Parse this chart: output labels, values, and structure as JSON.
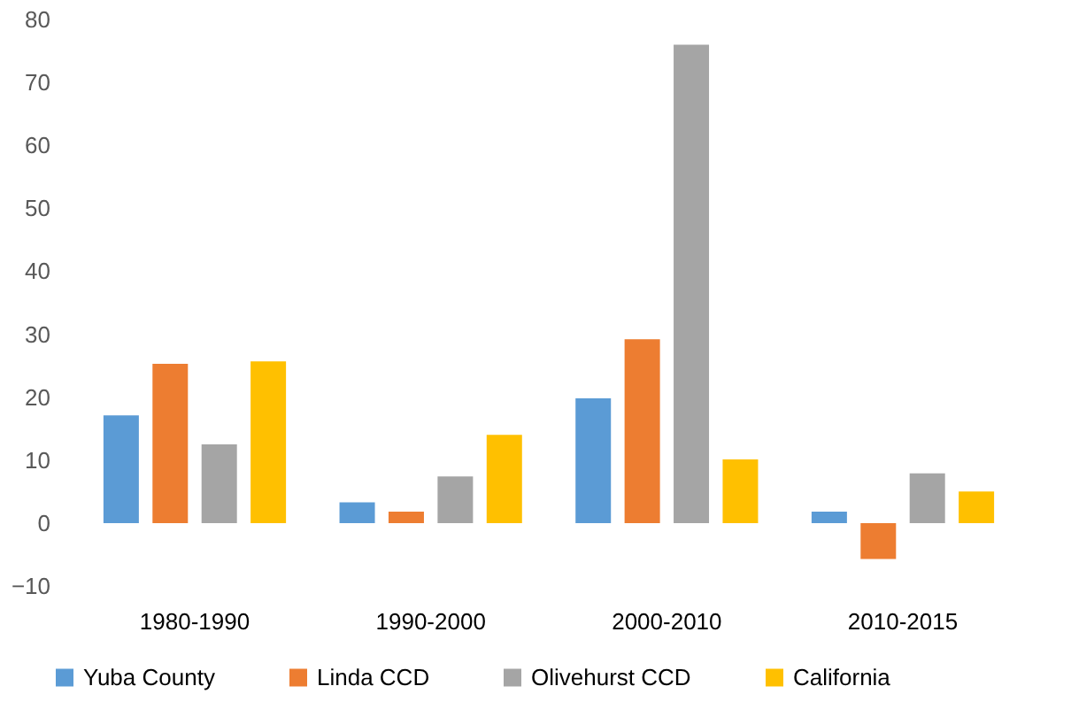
{
  "chart_data": {
    "type": "bar",
    "categories": [
      "1980-1990",
      "1990-2000",
      "2000-2010",
      "2010-2015"
    ],
    "series": [
      {
        "name": "Yuba County",
        "color": "#5b9bd5",
        "values": [
          17.1,
          3.3,
          19.8,
          1.8
        ]
      },
      {
        "name": "Linda CCD",
        "color": "#ed7d31",
        "values": [
          25.3,
          1.8,
          29.2,
          -5.7
        ]
      },
      {
        "name": "Olivehurst CCD",
        "color": "#a5a5a5",
        "values": [
          12.5,
          7.4,
          76.0,
          7.9
        ]
      },
      {
        "name": "California",
        "color": "#ffc000",
        "values": [
          25.7,
          14.0,
          10.1,
          5.0
        ]
      }
    ],
    "ylim": [
      -10,
      80
    ],
    "yticks": [
      -10,
      0,
      10,
      20,
      30,
      40,
      50,
      60,
      70,
      80
    ],
    "grid": false,
    "legend": "bottom"
  }
}
